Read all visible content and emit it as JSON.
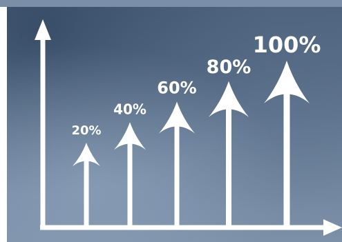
{
  "colors": {
    "background_top": "#4f6580",
    "background_bottom": "#7c90a8",
    "arrows": "#ffffff",
    "labels": "#ffffff"
  },
  "chart_data": {
    "type": "bar",
    "categories": [
      "",
      "",
      "",
      "",
      ""
    ],
    "values": [
      20,
      40,
      60,
      80,
      100
    ],
    "data_labels": [
      "20%",
      "40%",
      "60%",
      "80%",
      "100%"
    ],
    "title": "",
    "xlabel": "",
    "ylabel": "",
    "ylim": [
      0,
      100
    ],
    "grid": false,
    "legend": "none",
    "mark_style": "upward arrows"
  }
}
